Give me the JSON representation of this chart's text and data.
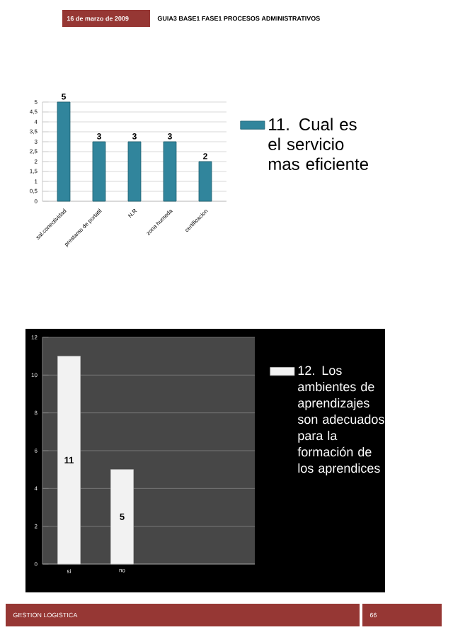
{
  "chart_data": [
    {
      "type": "bar",
      "categories": [
        "sal.conectividad",
        "prestamo de portatil",
        "N.R",
        "zona humeda",
        "certificacion"
      ],
      "series": [
        {
          "name": "11. Cual es el servicio mas eficiente",
          "color": "#31859c",
          "values": [
            5,
            3,
            3,
            3,
            2
          ]
        }
      ],
      "ylim": [
        0,
        5
      ],
      "yticks": [
        0,
        {
          "value": 0.5,
          "label": "0,5"
        },
        1,
        {
          "value": 1.5,
          "label": "1,5"
        },
        2,
        {
          "value": 2.5,
          "label": "2,5"
        },
        3,
        {
          "value": 3.5,
          "label": "3,5"
        },
        4,
        {
          "value": 4.5,
          "label": "4,5"
        },
        5
      ],
      "grid": "y",
      "legend": "right",
      "data_labels": true,
      "annotations": [
        "16 de marzo de 2009",
        "GUIA3 BASE1 FASE1 PROCESOS ADMINISTRATIVOS"
      ]
    },
    {
      "type": "bar",
      "categories": [
        "si",
        "no"
      ],
      "series": [
        {
          "name": "12. Los ambientes de aprendizajes son adecuados para la formación de los aprendices",
          "color": "#f2f2f2",
          "values": [
            11,
            5
          ]
        }
      ],
      "ylim": [
        0,
        12
      ],
      "yticks": [
        0,
        2,
        4,
        6,
        8,
        10,
        12
      ],
      "grid": "y",
      "legend": "right",
      "data_labels": true,
      "annotations": [
        "GESTION LOGISTICA",
        "66"
      ]
    }
  ]
}
